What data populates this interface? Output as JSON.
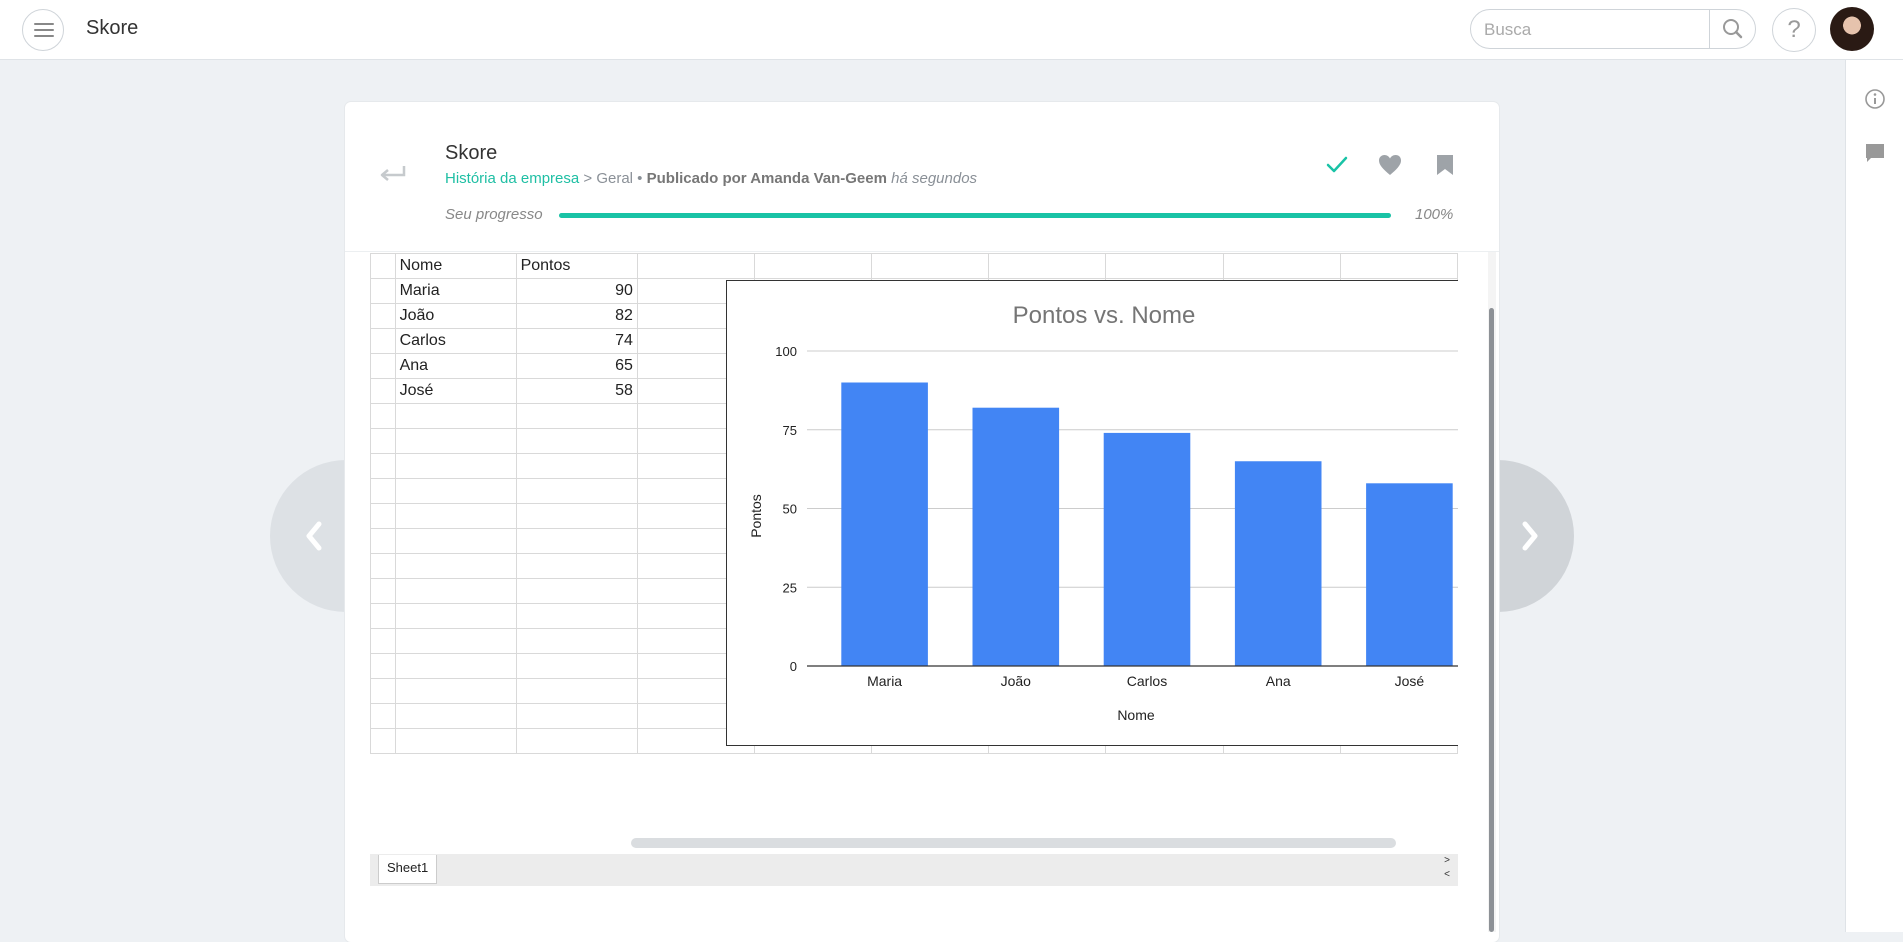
{
  "app": {
    "title": "Skore"
  },
  "search": {
    "placeholder": "Busca"
  },
  "help": {
    "label": "?"
  },
  "post": {
    "title": "Skore",
    "breadcrumb_link": "História da empresa",
    "breadcrumb_rest": " > Geral • ",
    "published_by": "Publicado por Amanda Van-Geem",
    "time": "há segundos",
    "progress_label": "Seu progresso",
    "progress_value": "100%",
    "progress_fraction": 1.0
  },
  "sheet": {
    "headers": [
      "Nome",
      "Pontos"
    ],
    "rows": [
      [
        "Maria",
        "90"
      ],
      [
        "João",
        "82"
      ],
      [
        "Carlos",
        "74"
      ],
      [
        "Ana",
        "65"
      ],
      [
        "José",
        "58"
      ]
    ],
    "tab": "Sheet1"
  },
  "colors": {
    "accent": "#19c3a6",
    "bar": "#4285f4"
  },
  "chart_data": {
    "type": "bar",
    "title": "Pontos vs. Nome",
    "xlabel": "Nome",
    "ylabel": "Pontos",
    "categories": [
      "Maria",
      "João",
      "Carlos",
      "Ana",
      "José"
    ],
    "values": [
      90,
      82,
      74,
      65,
      58
    ],
    "ylim": [
      0,
      100
    ],
    "yticks": [
      0,
      25,
      50,
      75,
      100
    ],
    "grid": true
  }
}
